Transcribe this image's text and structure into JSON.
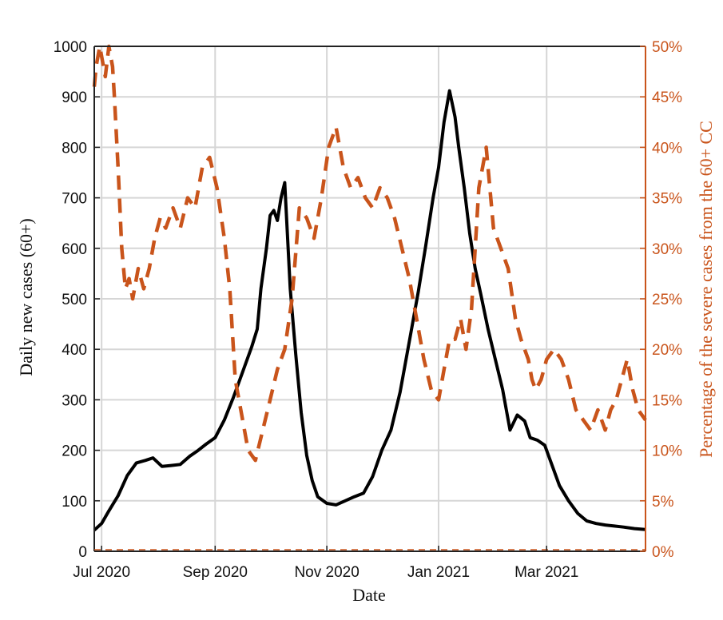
{
  "chart_data": {
    "type": "line",
    "xlabel": "Date",
    "ylabel_left": "Daily new cases (60+)",
    "ylabel_right": "Percentage of the severe cases from the 60+ CC",
    "x_range": [
      "2020-06-27",
      "2021-04-24"
    ],
    "x_tick_dates": [
      "2020-07-01",
      "2020-09-01",
      "2020-11-01",
      "2021-01-01",
      "2021-03-01"
    ],
    "x_tick_labels": [
      "Jul 2020",
      "Sep 2020",
      "Nov 2020",
      "Jan 2021",
      "Mar 2021"
    ],
    "ylim_left": [
      0,
      1000
    ],
    "yticks_left": [
      "0",
      "100",
      "200",
      "300",
      "400",
      "500",
      "600",
      "700",
      "800",
      "900",
      "1000"
    ],
    "ylim_right": [
      0,
      50
    ],
    "yticks_right": [
      "0%",
      "5%",
      "10%",
      "15%",
      "20%",
      "25%",
      "30%",
      "35%",
      "40%",
      "45%",
      "50%"
    ],
    "grid": true,
    "colors": {
      "left_series": "#000000",
      "right_series": "#c9541b",
      "grid": "#d6d6d6"
    },
    "series": [
      {
        "axis": "left",
        "style": "solid",
        "x": [
          "2020-06-27",
          "2020-07-01",
          "2020-07-05",
          "2020-07-10",
          "2020-07-15",
          "2020-07-20",
          "2020-07-25",
          "2020-07-29",
          "2020-08-03",
          "2020-08-08",
          "2020-08-13",
          "2020-08-18",
          "2020-08-22",
          "2020-08-27",
          "2020-09-01",
          "2020-09-06",
          "2020-09-11",
          "2020-09-16",
          "2020-09-21",
          "2020-09-24",
          "2020-09-26",
          "2020-09-29",
          "2020-10-01",
          "2020-10-03",
          "2020-10-05",
          "2020-10-07",
          "2020-10-09",
          "2020-10-12",
          "2020-10-15",
          "2020-10-18",
          "2020-10-21",
          "2020-10-24",
          "2020-10-27",
          "2020-11-01",
          "2020-11-06",
          "2020-11-11",
          "2020-11-16",
          "2020-11-21",
          "2020-11-26",
          "2020-12-01",
          "2020-12-06",
          "2020-12-11",
          "2020-12-16",
          "2020-12-21",
          "2020-12-25",
          "2020-12-29",
          "2021-01-01",
          "2021-01-04",
          "2021-01-07",
          "2021-01-10",
          "2021-01-12",
          "2021-01-15",
          "2021-01-18",
          "2021-01-21",
          "2021-01-24",
          "2021-01-28",
          "2021-02-01",
          "2021-02-05",
          "2021-02-09",
          "2021-02-13",
          "2021-02-17",
          "2021-02-20",
          "2021-02-24",
          "2021-02-28",
          "2021-03-04",
          "2021-03-08",
          "2021-03-13",
          "2021-03-18",
          "2021-03-23",
          "2021-03-28",
          "2021-04-02",
          "2021-04-07",
          "2021-04-12",
          "2021-04-18",
          "2021-04-24"
        ],
        "values": [
          42,
          55,
          80,
          110,
          150,
          175,
          180,
          185,
          168,
          170,
          172,
          188,
          198,
          212,
          225,
          260,
          305,
          355,
          405,
          440,
          520,
          600,
          665,
          675,
          655,
          700,
          730,
          520,
          390,
          275,
          190,
          140,
          108,
          95,
          92,
          100,
          108,
          115,
          148,
          200,
          240,
          315,
          415,
          515,
          605,
          700,
          760,
          850,
          912,
          860,
          800,
          720,
          630,
          560,
          510,
          440,
          380,
          320,
          240,
          270,
          258,
          225,
          220,
          210,
          170,
          130,
          100,
          75,
          60,
          55,
          52,
          50,
          48,
          45,
          43
        ]
      },
      {
        "axis": "right",
        "style": "dashed",
        "x": [
          "2020-06-27",
          "2020-06-28",
          "2020-06-30",
          "2020-07-01",
          "2020-07-03",
          "2020-07-05",
          "2020-07-07",
          "2020-07-08",
          "2020-07-10",
          "2020-07-12",
          "2020-07-14",
          "2020-07-16",
          "2020-07-18",
          "2020-07-21",
          "2020-07-24",
          "2020-07-27",
          "2020-07-30",
          "2020-08-02",
          "2020-08-05",
          "2020-08-09",
          "2020-08-13",
          "2020-08-17",
          "2020-08-21",
          "2020-08-25",
          "2020-08-29",
          "2020-09-02",
          "2020-09-06",
          "2020-09-09",
          "2020-09-12",
          "2020-09-15",
          "2020-09-19",
          "2020-09-23",
          "2020-09-27",
          "2020-10-01",
          "2020-10-05",
          "2020-10-09",
          "2020-10-13",
          "2020-10-17",
          "2020-10-21",
          "2020-10-25",
          "2020-10-29",
          "2020-11-02",
          "2020-11-06",
          "2020-11-10",
          "2020-11-14",
          "2020-11-18",
          "2020-11-22",
          "2020-11-26",
          "2020-11-30",
          "2020-12-04",
          "2020-12-08",
          "2020-12-12",
          "2020-12-16",
          "2020-12-20",
          "2020-12-24",
          "2020-12-28",
          "2021-01-01",
          "2021-01-04",
          "2021-01-07",
          "2021-01-10",
          "2021-01-13",
          "2021-01-16",
          "2021-01-19",
          "2021-01-23",
          "2021-01-27",
          "2021-01-31",
          "2021-02-04",
          "2021-02-08",
          "2021-02-12",
          "2021-02-15",
          "2021-02-17",
          "2021-02-19",
          "2021-02-21",
          "2021-02-23",
          "2021-02-26",
          "2021-03-01",
          "2021-03-05",
          "2021-03-09",
          "2021-03-13",
          "2021-03-17",
          "2021-03-21",
          "2021-03-25",
          "2021-03-29",
          "2021-04-02",
          "2021-04-05",
          "2021-04-08",
          "2021-04-11",
          "2021-04-14",
          "2021-04-17",
          "2021-04-20",
          "2021-04-24"
        ],
        "values": [
          46,
          48,
          50,
          49,
          47,
          50,
          48,
          45,
          38,
          30,
          26,
          27,
          25,
          28,
          26,
          28,
          31,
          33,
          32,
          34,
          32,
          35,
          34,
          38,
          39,
          36,
          31,
          26,
          17,
          14,
          10,
          9,
          12,
          15,
          18,
          20,
          25,
          34,
          33,
          31,
          35,
          40,
          42,
          38,
          36,
          37,
          35,
          34,
          36,
          35,
          33,
          30,
          27,
          23,
          19,
          16,
          15,
          18,
          21,
          21,
          23,
          20,
          24,
          36,
          40,
          32,
          30,
          28,
          23,
          21,
          20,
          19,
          17,
          16,
          17,
          19,
          20,
          19,
          17,
          14,
          13,
          12,
          14,
          12,
          14,
          15,
          17,
          19,
          16,
          14,
          13
        ]
      }
    ]
  }
}
